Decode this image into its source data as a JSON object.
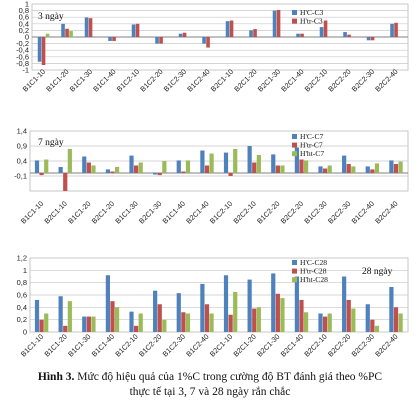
{
  "caption": {
    "label": "Hình 3.",
    "line1": "Mức độ hiệu quả của 1%C trong cường độ BT đánh giá theo %PC",
    "line2": "thực tế tại 3, 7 và 28 ngày rắn chắc"
  },
  "colors": {
    "blue": "#4f81bd",
    "red": "#c0504d",
    "green": "#9bbb59"
  },
  "chart_data": [
    {
      "type": "bar",
      "title": "3 ngày",
      "categories": [
        "B1C1-10",
        "B1C1-20",
        "B1C1-30",
        "B1C1-40",
        "B1C2-10",
        "B1C2-20",
        "B1C2-30",
        "B1C2-40",
        "B2C1-10",
        "B2C1-20",
        "B2C1-30",
        "B2C1-40",
        "B2C2-10",
        "B2C2-20",
        "B2C2-30",
        "B2C2-40"
      ],
      "yticks": [
        "-1",
        "-0,8",
        "-0,6",
        "-0,4",
        "-0,2",
        "0",
        "0,2",
        "0,4",
        "0,6",
        "0,8",
        "1"
      ],
      "ylim": [
        -1,
        1
      ],
      "series": [
        {
          "name": "H'C-C3",
          "values": [
            -0.75,
            0.4,
            0.59,
            -0.12,
            0.38,
            -0.2,
            0.1,
            -0.2,
            0.48,
            0.2,
            0.8,
            0.1,
            0.3,
            0.15,
            -0.1,
            0.4
          ]
        },
        {
          "name": "H'tr-C3",
          "values": [
            -0.85,
            0.25,
            0.57,
            -0.12,
            0.4,
            -0.2,
            0.13,
            -0.32,
            0.5,
            0.24,
            0.82,
            0.1,
            0.5,
            0.07,
            -0.1,
            0.43
          ]
        },
        {
          "name": "",
          "values": [
            0.1,
            0.18,
            0,
            0,
            0,
            0,
            0,
            0,
            0,
            0,
            0,
            0,
            0,
            0,
            0,
            0
          ]
        }
      ]
    },
    {
      "type": "bar",
      "title": "7 ngày",
      "categories": [
        "B1C1-10",
        "B2C1-10",
        "B1C1-20",
        "B2C1-20",
        "B1C1-30",
        "B2C1-30",
        "B1C1-40",
        "B2C1-40",
        "B1C2-10",
        "B2C2-10",
        "B1C2-20",
        "B2C2-20",
        "B1C2-30",
        "B2C2-30",
        "B1C2-40",
        "B2C2-40"
      ],
      "yticks": [
        "-0,1",
        "0,4",
        "0,9",
        "1,4"
      ],
      "ylim": [
        -0.6,
        1.4
      ],
      "series": [
        {
          "name": "H'C-C7",
          "values": [
            0.42,
            0.2,
            0.55,
            0.12,
            0.58,
            -0.05,
            0.42,
            0.75,
            0.68,
            0.9,
            0.62,
            0.85,
            0.22,
            0.58,
            0.22,
            0.42
          ]
        },
        {
          "name": "H'tr-C7",
          "values": [
            -0.07,
            -0.6,
            0.35,
            0.05,
            0.25,
            -0.07,
            0.05,
            0.25,
            -0.1,
            0.35,
            0.25,
            0.45,
            0.15,
            0.3,
            0.12,
            0.3
          ]
        },
        {
          "name": "H'ht-C7",
          "values": [
            0.45,
            0.8,
            0.25,
            0.2,
            0.35,
            0.4,
            0.42,
            0.65,
            0.8,
            0.6,
            0.25,
            0.42,
            0.25,
            0.22,
            0.32,
            0.38
          ]
        }
      ]
    },
    {
      "type": "bar",
      "title": "28 ngày",
      "categories": [
        "B1C1-10",
        "B1C1-20",
        "B1C1-30",
        "B1C1-40",
        "B1C2-10",
        "B1C2-20",
        "B1C2-30",
        "B1C2-40",
        "B2C1-10",
        "B2C1-20",
        "B2C1-30",
        "B2C1-40",
        "B2C2-10",
        "B2C2-20",
        "B2C2-30",
        "B2C2-40"
      ],
      "yticks": [
        "0",
        "0,2",
        "0,4",
        "0,6",
        "0,8",
        "1",
        "1,2"
      ],
      "ylim": [
        0,
        1.2
      ],
      "series": [
        {
          "name": "H'C-C28",
          "values": [
            0.52,
            0.58,
            0.25,
            0.92,
            0.33,
            0.67,
            0.63,
            0.78,
            0.92,
            0.85,
            0.95,
            0.9,
            0.3,
            0.9,
            0.45,
            0.73
          ]
        },
        {
          "name": "H'tr-C28",
          "values": [
            0.2,
            0.1,
            0.25,
            0.5,
            0.1,
            0.45,
            0.32,
            0.45,
            0.28,
            0.38,
            0.62,
            0.52,
            0.25,
            0.52,
            0.2,
            0.4
          ]
        },
        {
          "name": "H'ht-C28",
          "values": [
            0.3,
            0.5,
            0.25,
            0.4,
            0.3,
            0.2,
            0.3,
            0.3,
            0.65,
            0.4,
            0.55,
            0.32,
            0.3,
            0.38,
            0.1,
            0.3
          ]
        }
      ]
    }
  ]
}
